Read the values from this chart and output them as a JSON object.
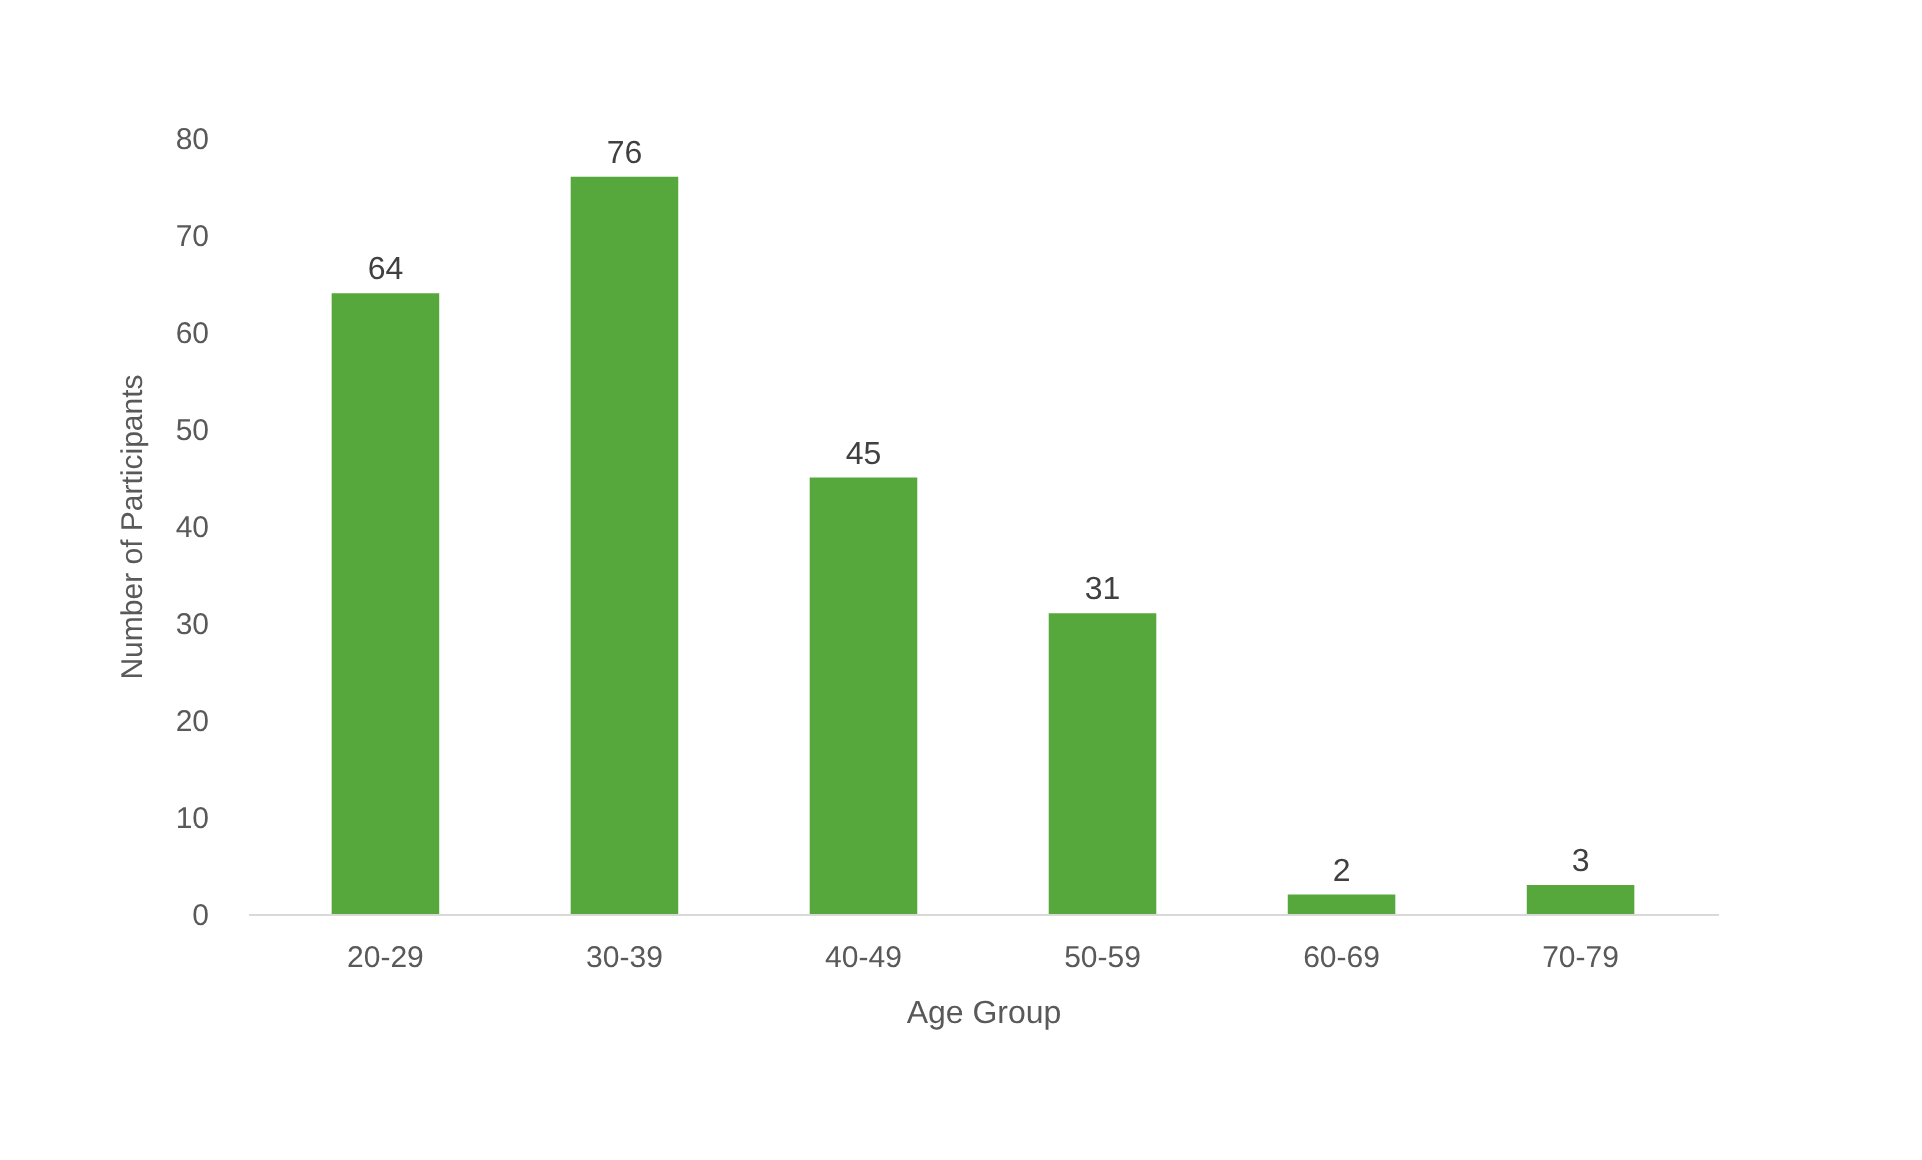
{
  "chart_data": {
    "type": "bar",
    "xlabel": "Age Group",
    "ylabel": "Number of Participants",
    "categories": [
      "20-29",
      "30-39",
      "40-49",
      "50-59",
      "60-69",
      "70-79"
    ],
    "values": [
      64,
      76,
      45,
      31,
      2,
      3
    ],
    "color": "#56a83c",
    "ylim": [
      0,
      80
    ],
    "yticks": [
      0,
      10,
      20,
      30,
      40,
      50,
      60,
      70,
      80
    ],
    "grid": false,
    "data_labels": true
  }
}
